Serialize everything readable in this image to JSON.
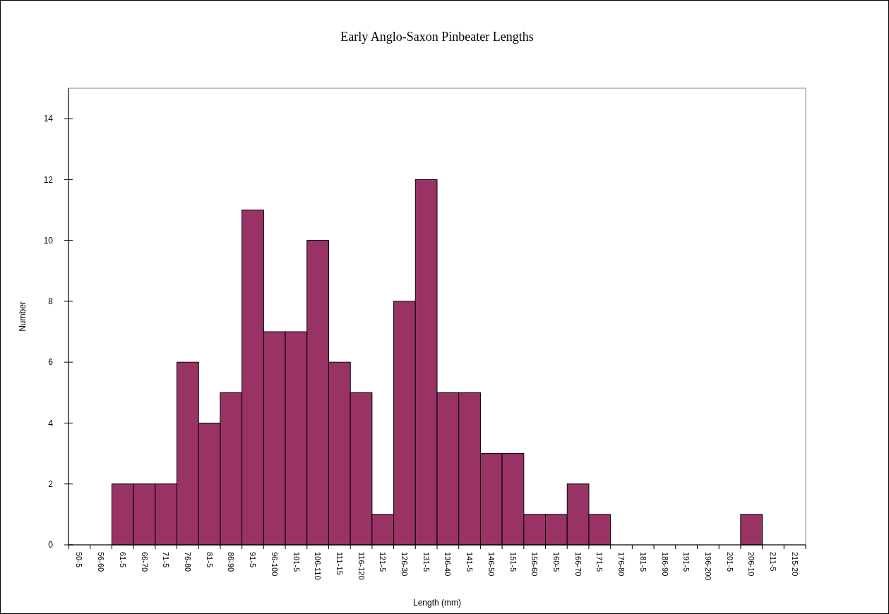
{
  "chart_data": {
    "type": "bar",
    "title": "Early Anglo-Saxon Pinbeater Lengths",
    "xlabel": "Length (mm)",
    "ylabel": "Number",
    "categories": [
      "50-5",
      "56-60",
      "61-5",
      "66-70",
      "71-5",
      "76-80",
      "81-5",
      "86-90",
      "91-5",
      "96-100",
      "101-5",
      "106-110",
      "111-15",
      "116-120",
      "121-5",
      "126-30",
      "131-5",
      "136-40",
      "141-5",
      "146-50",
      "151-5",
      "156-60",
      "160-5",
      "166-70",
      "171-5",
      "176-80",
      "181-5",
      "186-90",
      "191-5",
      "196-200",
      "201-5",
      "206-10",
      "211-5",
      "215-20"
    ],
    "values": [
      0,
      0,
      2,
      2,
      2,
      6,
      4,
      5,
      11,
      7,
      7,
      10,
      6,
      5,
      1,
      8,
      12,
      5,
      5,
      3,
      3,
      1,
      1,
      2,
      1,
      0,
      0,
      0,
      0,
      0,
      0,
      1,
      0,
      0
    ],
    "color": "#993366",
    "ylim": [
      0,
      15
    ],
    "yticks": [
      0,
      2,
      4,
      6,
      8,
      10,
      12,
      14
    ],
    "grid": false
  }
}
